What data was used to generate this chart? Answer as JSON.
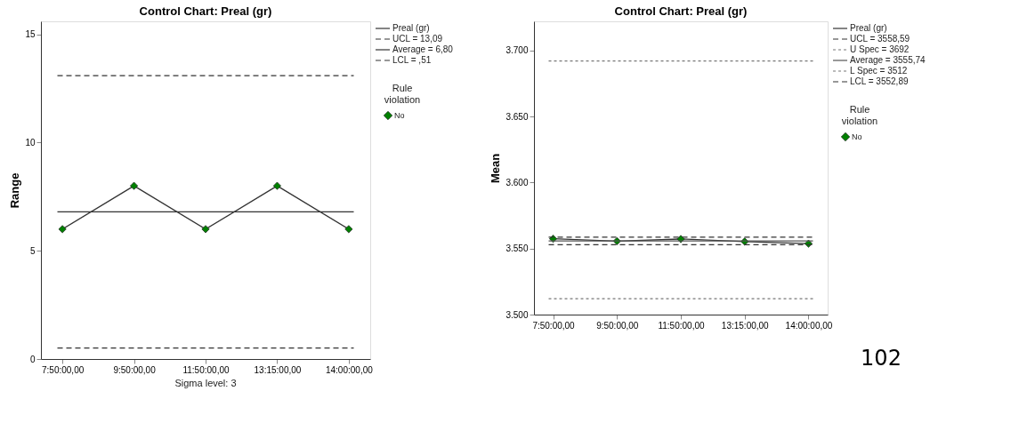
{
  "chart_data": [
    {
      "type": "line",
      "title": "Control Chart: Preal (gr)",
      "ylabel": "Range",
      "legend_title": "Rule violation",
      "legend": "right",
      "grid": false,
      "categories": [
        "7:50:00,00",
        "9:50:00,00",
        "11:50:00,00",
        "13:15:00,00",
        "14:00:00,00"
      ],
      "ylim": [
        0,
        15.6
      ],
      "yticks": [
        0,
        5,
        10,
        15
      ],
      "series": [
        {
          "name": "Preal (gr)",
          "color": "#333333",
          "values": [
            6,
            8,
            6,
            8,
            6
          ],
          "marker": "none",
          "line_style": "solid"
        },
        {
          "type": "scatter",
          "name": "No",
          "color": "#008000",
          "marker": "diamond",
          "x": [
            "7:50:00,00",
            "9:50:00,00",
            "11:50:00,00",
            "13:15:00,00",
            "14:00:00,00"
          ],
          "values": [
            6,
            8,
            6,
            8,
            6
          ]
        }
      ],
      "ref_lines": [
        {
          "axis": "y",
          "value": 13.09,
          "label": "UCL = 13,09",
          "color": "#333333",
          "line_style": "dashed"
        },
        {
          "axis": "y",
          "value": 6.8,
          "label": "Average = 6,80",
          "color": "#333333",
          "line_style": "solid"
        },
        {
          "axis": "y",
          "value": 0.51,
          "label": "LCL = ,51",
          "color": "#333333",
          "line_style": "dashed"
        }
      ],
      "annotations": [
        "Sigma level:       3"
      ]
    },
    {
      "type": "line",
      "title": "Control Chart: Preal (gr)",
      "ylabel": "Mean",
      "legend_title": "Rule violation",
      "legend": "right",
      "grid": false,
      "categories": [
        "7:50:00,00",
        "9:50:00,00",
        "11:50:00,00",
        "13:15:00,00",
        "14:00:00,00"
      ],
      "ylim": [
        3500,
        3722
      ],
      "yticks": [
        {
          "value": 3500,
          "label": "3.500"
        },
        {
          "value": 3550,
          "label": "3.550"
        },
        {
          "value": 3600,
          "label": "3.600"
        },
        {
          "value": 3650,
          "label": "3.650"
        },
        {
          "value": 3700,
          "label": "3.700"
        }
      ],
      "series": [
        {
          "name": "Preal (gr)",
          "color": "#333333",
          "values": [
            3557.4,
            3555.6,
            3557.2,
            3555.3,
            3553.7
          ],
          "marker": "none",
          "line_style": "solid"
        },
        {
          "type": "scatter",
          "name": "No",
          "color": "#008000",
          "marker": "diamond",
          "x": [
            "7:50:00,00",
            "9:50:00,00",
            "11:50:00,00",
            "13:15:00,00",
            "14:00:00,00"
          ],
          "values": [
            3557.4,
            3555.6,
            3557.2,
            3555.3,
            3553.7
          ]
        }
      ],
      "ref_lines": [
        {
          "axis": "y",
          "value": 3558.59,
          "label": "UCL = 3558,59",
          "color": "#333333",
          "line_style": "dashed"
        },
        {
          "axis": "y",
          "value": 3692,
          "label": "U Spec = 3692",
          "color": "#777777",
          "line_style": "dotted"
        },
        {
          "axis": "y",
          "value": 3555.74,
          "label": "Average = 3555,74",
          "color": "#555555",
          "line_style": "solid"
        },
        {
          "axis": "y",
          "value": 3512,
          "label": "L Spec = 3512",
          "color": "#777777",
          "line_style": "dotted"
        },
        {
          "axis": "y",
          "value": 3552.89,
          "label": "LCL = 3552,89",
          "color": "#333333",
          "line_style": "dashed"
        }
      ],
      "annotations": [
        "102"
      ]
    }
  ]
}
